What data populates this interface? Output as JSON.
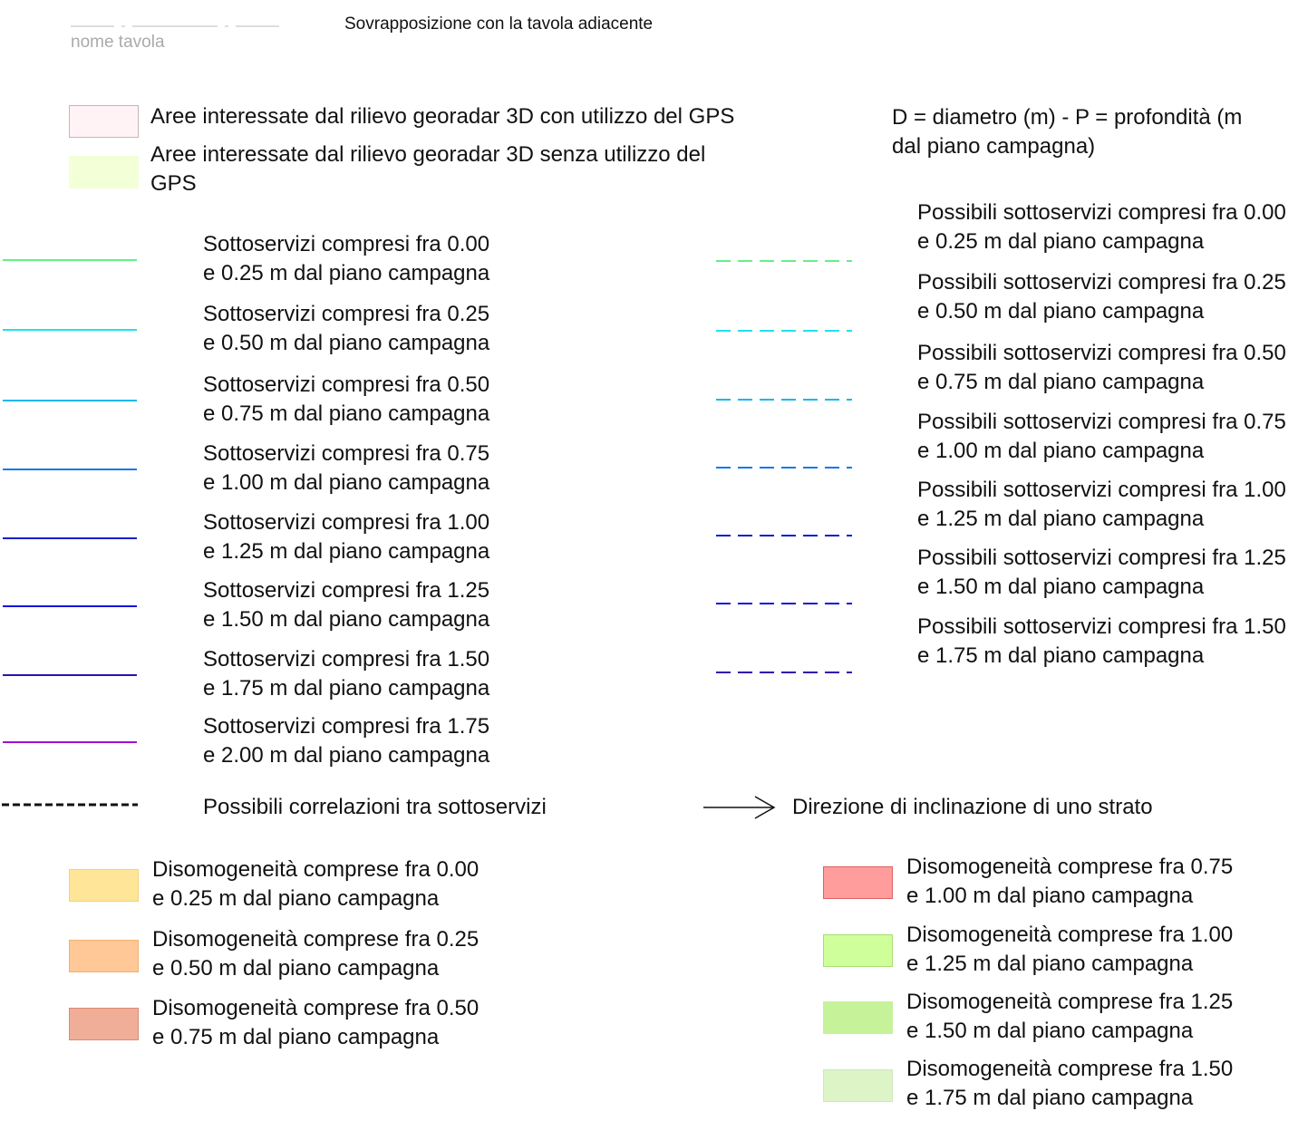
{
  "header": {
    "tavola_label": "nome tavola",
    "overlap_label": "Sovrapposizione con la tavola adiacente"
  },
  "areas": [
    {
      "label": "Aree interessate dal rilievo georadar 3D con utilizzo del GPS",
      "fill": "#fff3f5",
      "border": "#c8b4b8"
    },
    {
      "label_line1": "Aree interessate dal rilievo georadar 3D senza utilizzo del",
      "label_line2": "GPS",
      "fill": "#f3ffd6",
      "border": "#f3ffd6"
    }
  ],
  "legend_note": {
    "line1": "D = diametro (m) - P = profondità (m",
    "line2": "dal piano campagna)"
  },
  "sottoservizi": [
    {
      "line1": "Sottoservizi compresi fra 0.00",
      "line2": "e 0.25 m dal piano campagna",
      "color": "#66ee88"
    },
    {
      "line1": "Sottoservizi compresi fra 0.25",
      "line2": "e 0.50 m dal piano campagna",
      "color": "#22e0ee"
    },
    {
      "line1": "Sottoservizi compresi fra 0.50",
      "line2": "e 0.75 m dal piano campagna",
      "color": "#14b8ee"
    },
    {
      "line1": "Sottoservizi compresi fra 0.75",
      "line2": "e 1.00 m dal piano campagna",
      "color": "#1477ee"
    },
    {
      "line1": "Sottoservizi compresi fra 1.00",
      "line2": "e 1.25 m dal piano campagna",
      "color": "#1020cc"
    },
    {
      "line1": "Sottoservizi compresi fra 1.25",
      "line2": "e 1.50 m dal piano campagna",
      "color": "#1414dd"
    },
    {
      "line1": "Sottoservizi compresi fra 1.50",
      "line2": "e 1.75 m dal piano campagna",
      "color": "#3010b0"
    },
    {
      "line1": "Sottoservizi compresi fra 1.75",
      "line2": "e 2.00 m dal piano campagna",
      "color": "#a010d0"
    }
  ],
  "possibili": [
    {
      "line1": "Possibili sottoservizi compresi fra 0.00",
      "line2": "e 0.25 m dal piano campagna",
      "color": "#66ee88"
    },
    {
      "line1": "Possibili sottoservizi compresi fra 0.25",
      "line2": "e 0.50 m dal piano campagna",
      "color": "#22e0ee"
    },
    {
      "line1": "Possibili sottoservizi compresi fra 0.50",
      "line2": "e 0.75 m dal piano campagna",
      "color": "#14b8ee"
    },
    {
      "line1": "Possibili sottoservizi compresi fra 0.75",
      "line2": "e 1.00 m dal piano campagna",
      "color": "#1477ee"
    },
    {
      "line1": "Possibili sottoservizi compresi fra 1.00",
      "line2": "e 1.25 m dal piano campagna",
      "color": "#1020cc"
    },
    {
      "line1": "Possibili sottoservizi compresi fra 1.25",
      "line2": "e 1.50 m dal piano campagna",
      "color": "#1414dd"
    },
    {
      "line1": "Possibili sottoservizi compresi fra 1.50",
      "line2": "e 1.75 m dal piano campagna",
      "color": "#3010b0"
    }
  ],
  "correlazioni": {
    "label": "Possibili correlazioni tra sottoservizi"
  },
  "direzione": {
    "label": "Direzione di inclinazione di uno strato"
  },
  "disomogeneita_left": [
    {
      "line1": "Disomogeneità comprese fra 0.00",
      "line2": "e 0.25 m dal piano campagna",
      "fill": "#ffe597",
      "border": "#f2d27a"
    },
    {
      "line1": "Disomogeneità comprese fra 0.25",
      "line2": "e 0.50 m dal piano campagna",
      "fill": "#ffc896",
      "border": "#f2b070"
    },
    {
      "line1": "Disomogeneità comprese fra 0.50",
      "line2": "e 0.75 m dal piano campagna",
      "fill": "#f0ae98",
      "border": "#d88a74"
    }
  ],
  "disomogeneita_right": [
    {
      "line1": "Disomogeneità comprese fra 0.75",
      "line2": "e 1.00 m dal piano campagna",
      "fill": "#ff9c9c",
      "border": "#e06060"
    },
    {
      "line1": "Disomogeneità comprese fra 1.00",
      "line2": "e 1.25 m dal piano campagna",
      "fill": "#cfff9a",
      "border": "#a6e070"
    },
    {
      "line1": "Disomogeneità comprese fra 1.25",
      "line2": "e 1.50 m dal piano campagna",
      "fill": "#c6f29a",
      "border": "#c6f29a"
    },
    {
      "line1": "Disomogeneità comprese fra 1.50",
      "line2": "e 1.75 m dal piano campagna",
      "fill": "#dcf4c6",
      "border": "#d0e8bc"
    }
  ]
}
